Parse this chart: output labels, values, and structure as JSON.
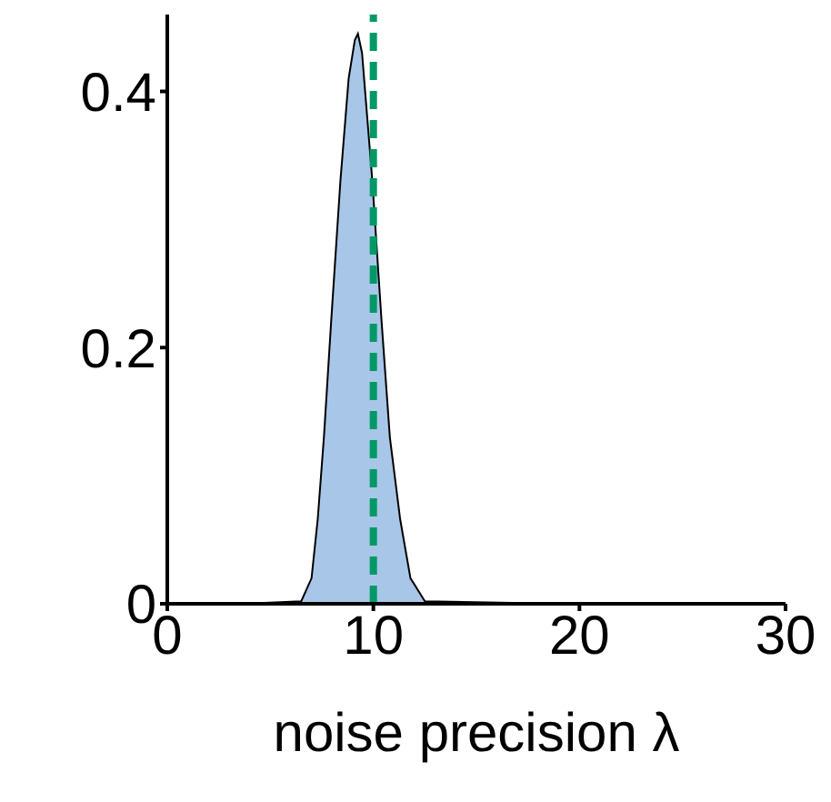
{
  "chart_data": {
    "type": "area",
    "xlabel": "noise precision λ",
    "x": [
      3.7,
      6.5,
      7.0,
      7.3,
      7.6,
      7.95,
      8.4,
      8.8,
      9.1,
      9.25,
      9.45,
      9.7,
      9.95,
      10.4,
      10.8,
      11.3,
      11.8,
      12.5,
      19.2
    ],
    "series": [
      {
        "color": "#a8c6e8",
        "values": [
          0,
          0.002,
          0.02,
          0.066,
          0.13,
          0.22,
          0.33,
          0.41,
          0.44,
          0.445,
          0.43,
          0.38,
          0.33,
          0.22,
          0.13,
          0.066,
          0.02,
          0.002,
          0
        ]
      }
    ],
    "xlim": [
      0,
      30
    ],
    "xticks": [
      0,
      10,
      20,
      30
    ],
    "ylim": [
      0,
      0.46
    ],
    "yticks": [
      0,
      0.2,
      0.4
    ],
    "ref_lines": [
      {
        "axis": "x",
        "value": 10,
        "color": "#009966",
        "line_style": "dashed"
      }
    ]
  }
}
